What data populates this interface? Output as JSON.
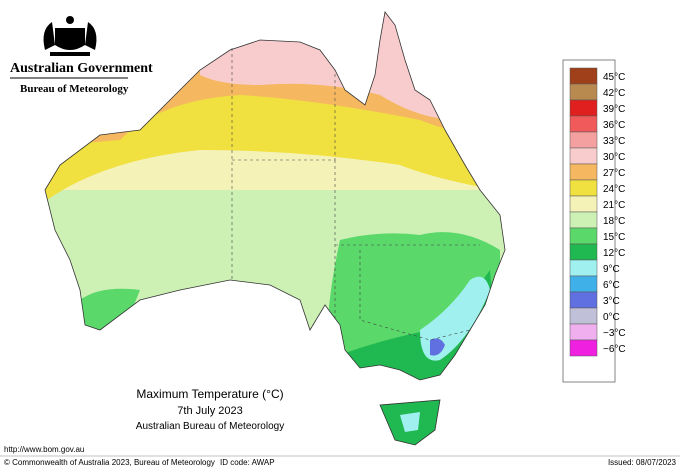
{
  "header": {
    "government": "Australian Government",
    "agency": "Bureau of Meteorology"
  },
  "map": {
    "title": "Maximum Temperature (°C)",
    "date": "7th July 2023",
    "source": "Australian Bureau of Meteorology"
  },
  "legend": {
    "items": [
      {
        "label": "45°C",
        "color": "#a0401a"
      },
      {
        "label": "42°C",
        "color": "#b88a50"
      },
      {
        "label": "39°C",
        "color": "#e0201e"
      },
      {
        "label": "36°C",
        "color": "#f05a5a"
      },
      {
        "label": "33°C",
        "color": "#f5a0a0"
      },
      {
        "label": "30°C",
        "color": "#f8cccc"
      },
      {
        "label": "27°C",
        "color": "#f5b860"
      },
      {
        "label": "24°C",
        "color": "#f0e040"
      },
      {
        "label": "21°C",
        "color": "#f5f2b8"
      },
      {
        "label": "18°C",
        "color": "#cdf0b4"
      },
      {
        "label": "15°C",
        "color": "#5ad86a"
      },
      {
        "label": "12°C",
        "color": "#20b850"
      },
      {
        "label": "9°C",
        "color": "#a0f0f0"
      },
      {
        "label": "6°C",
        "color": "#40b0e8"
      },
      {
        "label": "3°C",
        "color": "#6070e0"
      },
      {
        "label": "0°C",
        "color": "#c0c0d8"
      },
      {
        "label": "−3°C",
        "color": "#f0b0f0"
      },
      {
        "label": "−6°C",
        "color": "#f020e0"
      }
    ]
  },
  "footer": {
    "url": "http://www.bom.gov.au",
    "copyright": "© Commonwealth of Australia 2023, Bureau of Meteorology",
    "id_code": "ID code: AWAP",
    "issued": "Issued: 08/07/2023"
  }
}
